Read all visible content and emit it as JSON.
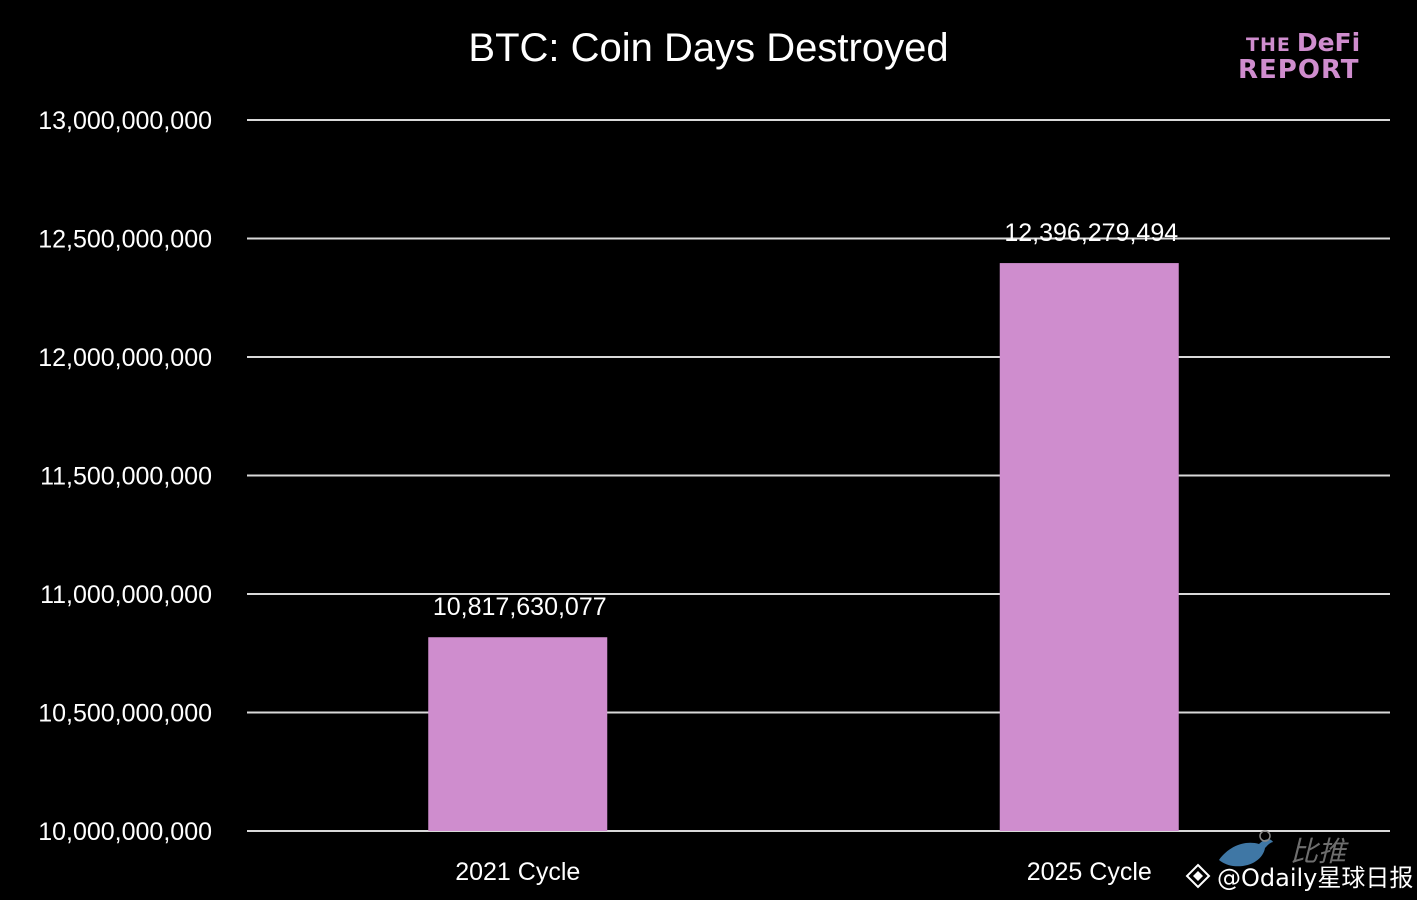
{
  "chart_data": {
    "type": "bar",
    "title": "BTC: Coin Days Destroyed",
    "categories": [
      "2021 Cycle",
      "2025 Cycle"
    ],
    "values": [
      10817630077,
      12396279494
    ],
    "data_labels": [
      "10,817,630,077",
      "12,396,279,494"
    ],
    "xlabel": "",
    "ylabel": "",
    "ylim": [
      10000000000,
      13000000000
    ],
    "yticks": [
      10000000000,
      10500000000,
      11000000000,
      11500000000,
      12000000000,
      12500000000,
      13000000000
    ],
    "ytick_labels": [
      "10,000,000,000",
      "10,500,000,000",
      "11,000,000,000",
      "11,500,000,000",
      "12,000,000,000",
      "12,500,000,000",
      "13,000,000,000"
    ],
    "grid": true,
    "legend": "none",
    "colors": {
      "background": "#000000",
      "bar": "#cf8dce",
      "grid": "#d9d9d9",
      "text": "#ffffff"
    }
  },
  "logo": {
    "the": "THE",
    "defi": "DeFi",
    "report": "REPORT",
    "color": "#cf8dce"
  },
  "watermark": {
    "bitui": "比推",
    "handle": "@Odaily星球日报",
    "icon": "binance-diamond-icon"
  }
}
